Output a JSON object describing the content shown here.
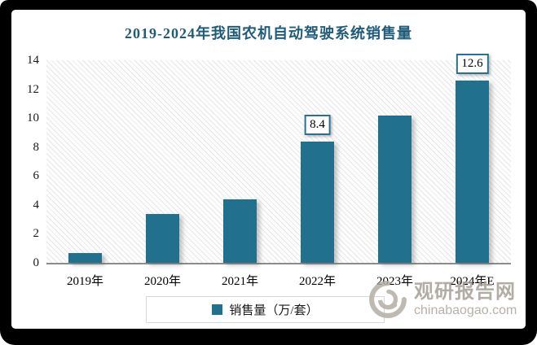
{
  "chart_data": {
    "type": "bar",
    "title": "2019-2024年我国农机自动驾驶系统销售量",
    "categories": [
      "2019年",
      "2020年",
      "2021年",
      "2022年",
      "2023年",
      "2024年E"
    ],
    "series": [
      {
        "name": "销售量（万/套）",
        "values": [
          0.7,
          3.4,
          4.4,
          8.4,
          10.2,
          12.6
        ]
      }
    ],
    "data_labels": {
      "3": "8.4",
      "5": "12.6"
    },
    "xlabel": "",
    "ylabel": "",
    "ylim": [
      0,
      14
    ],
    "yticks": [
      0,
      2,
      4,
      6,
      8,
      10,
      12,
      14
    ],
    "grid": false,
    "legend_position": "bottom",
    "bar_color": "#21708E",
    "plot_background": "diagonal-hatch"
  },
  "legend": {
    "label": "销售量（万/套）",
    "swatch_color": "#21708E"
  },
  "watermark": {
    "brand": "观研报告网",
    "domain": "chinabaogao.com"
  },
  "colors": {
    "bar": "#21708E",
    "title_text": "#1F5C7B",
    "axis_line": "#8C8C8C",
    "label_box_border": "#2A7091",
    "legend_border": "#D8D8D8",
    "watermark_gray": "#A49E95",
    "frame": "#000000",
    "card_background": "#FFFFFF"
  }
}
